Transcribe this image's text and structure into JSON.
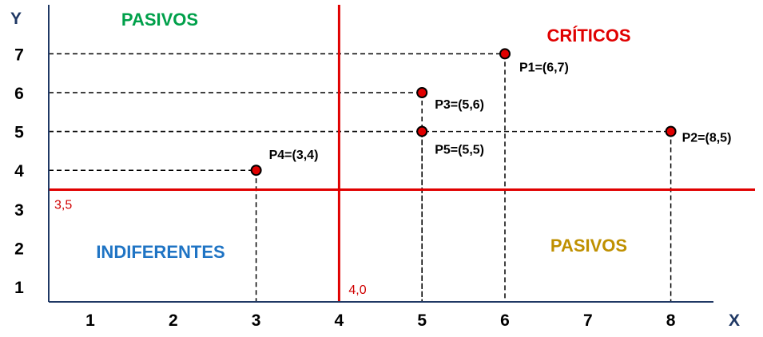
{
  "chart_data": {
    "type": "scatter",
    "xlabel": "X",
    "ylabel": "Y",
    "x_ticks": [
      "1",
      "2",
      "3",
      "4",
      "5",
      "6",
      "7",
      "8"
    ],
    "y_ticks": [
      "1",
      "2",
      "3",
      "4",
      "5",
      "6",
      "7"
    ],
    "xlim": [
      0.5,
      8.8
    ],
    "ylim": [
      0.3,
      8.2
    ],
    "grid": false,
    "points": [
      {
        "label": "P1=(6,7)",
        "x": 6,
        "y": 7
      },
      {
        "label": "P2=(8,5)",
        "x": 8,
        "y": 5
      },
      {
        "label": "P3=(5,6)",
        "x": 5,
        "y": 6
      },
      {
        "label": "P4=(3,4)",
        "x": 3,
        "y": 4
      },
      {
        "label": "P5=(5,5)",
        "x": 5,
        "y": 5
      }
    ],
    "thresholds": {
      "vertical": {
        "value": 4.0,
        "label": "4,0"
      },
      "horizontal": {
        "value": 3.5,
        "label": "3,5"
      }
    },
    "quadrant_labels": [
      {
        "text": "PASIVOS",
        "position": "top-left",
        "color": "#00a04a"
      },
      {
        "text": "CRÍTICOS",
        "position": "top-right",
        "color": "#e00000"
      },
      {
        "text": "INDIFERENTES",
        "position": "bottom-left",
        "color": "#1f74c4"
      },
      {
        "text": "PASIVOS",
        "position": "bottom-right",
        "color": "#bf9000"
      }
    ],
    "colors": {
      "threshold": "#e00000",
      "point_fill": "#e00000",
      "point_stroke": "#000000",
      "axis": "#1f3864"
    }
  }
}
